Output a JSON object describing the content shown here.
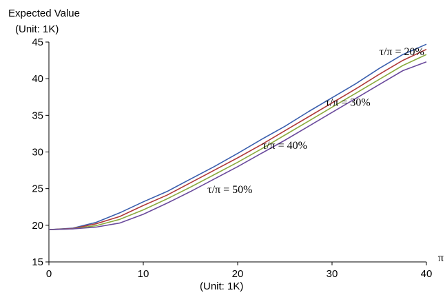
{
  "chart_data": {
    "type": "line",
    "ylabel_line1": "Expected Value",
    "ylabel_line2": "(Unit: 1K)",
    "xlabel_symbol": "π",
    "xlabel_unit": "(Unit: 1K)",
    "xlim": [
      0,
      40
    ],
    "ylim": [
      15,
      45
    ],
    "x_ticks": [
      0,
      10,
      20,
      30,
      40
    ],
    "y_ticks": [
      15,
      20,
      25,
      30,
      35,
      40,
      45
    ],
    "grid": false,
    "series": [
      {
        "name": "τ/π = 20%",
        "color": "#3a5fae",
        "points": [
          [
            0,
            19.4
          ],
          [
            2.5,
            19.6
          ],
          [
            5,
            20.4
          ],
          [
            7.5,
            21.7
          ],
          [
            10,
            23.2
          ],
          [
            12.5,
            24.6
          ],
          [
            15,
            26.3
          ],
          [
            17.5,
            28.0
          ],
          [
            20,
            29.8
          ],
          [
            22.5,
            31.7
          ],
          [
            25,
            33.5
          ],
          [
            27.5,
            35.5
          ],
          [
            30,
            37.4
          ],
          [
            32.5,
            39.3
          ],
          [
            35,
            41.4
          ],
          [
            37.5,
            43.3
          ],
          [
            40,
            44.7
          ]
        ]
      },
      {
        "name": "",
        "color": "#b03a3a",
        "points": [
          [
            0,
            19.4
          ],
          [
            2.5,
            19.55
          ],
          [
            5,
            20.2
          ],
          [
            7.5,
            21.2
          ],
          [
            10,
            22.7
          ],
          [
            12.5,
            24.1
          ],
          [
            15,
            25.8
          ],
          [
            17.5,
            27.5
          ],
          [
            20,
            29.2
          ],
          [
            22.5,
            31.0
          ],
          [
            25,
            32.9
          ],
          [
            27.5,
            34.8
          ],
          [
            30,
            36.7
          ],
          [
            32.5,
            38.6
          ],
          [
            35,
            40.6
          ],
          [
            37.5,
            42.5
          ],
          [
            40,
            44.0
          ]
        ]
      },
      {
        "name": "",
        "color": "#8aaa3e",
        "points": [
          [
            0,
            19.4
          ],
          [
            2.5,
            19.5
          ],
          [
            5,
            19.95
          ],
          [
            7.5,
            20.8
          ],
          [
            10,
            22.1
          ],
          [
            12.5,
            23.6
          ],
          [
            15,
            25.2
          ],
          [
            17.5,
            26.9
          ],
          [
            20,
            28.6
          ],
          [
            22.5,
            30.4
          ],
          [
            25,
            32.3
          ],
          [
            27.5,
            34.2
          ],
          [
            30,
            36.1
          ],
          [
            32.5,
            38.0
          ],
          [
            35,
            39.9
          ],
          [
            37.5,
            41.8
          ],
          [
            40,
            43.3
          ]
        ]
      },
      {
        "name": "",
        "color": "#6a4a9c",
        "points": [
          [
            0,
            19.4
          ],
          [
            2.5,
            19.5
          ],
          [
            5,
            19.75
          ],
          [
            7.5,
            20.3
          ],
          [
            10,
            21.5
          ],
          [
            12.5,
            23.0
          ],
          [
            15,
            24.6
          ],
          [
            17.5,
            26.3
          ],
          [
            20,
            28.0
          ],
          [
            22.5,
            29.8
          ],
          [
            25,
            31.6
          ],
          [
            27.5,
            33.5
          ],
          [
            30,
            35.4
          ],
          [
            32.5,
            37.3
          ],
          [
            35,
            39.2
          ],
          [
            37.5,
            41.1
          ],
          [
            40,
            42.3
          ]
        ]
      }
    ],
    "annotations": [
      {
        "text": "τ/π = 20%",
        "x": 35,
        "y": 43.2
      },
      {
        "text": "τ/π = 30%",
        "x": 29.3,
        "y": 36.3
      },
      {
        "text": "τ/π = 40%",
        "x": 22.6,
        "y": 30.4
      },
      {
        "text": "τ/π = 50%",
        "x": 16.8,
        "y": 24.4
      }
    ]
  }
}
